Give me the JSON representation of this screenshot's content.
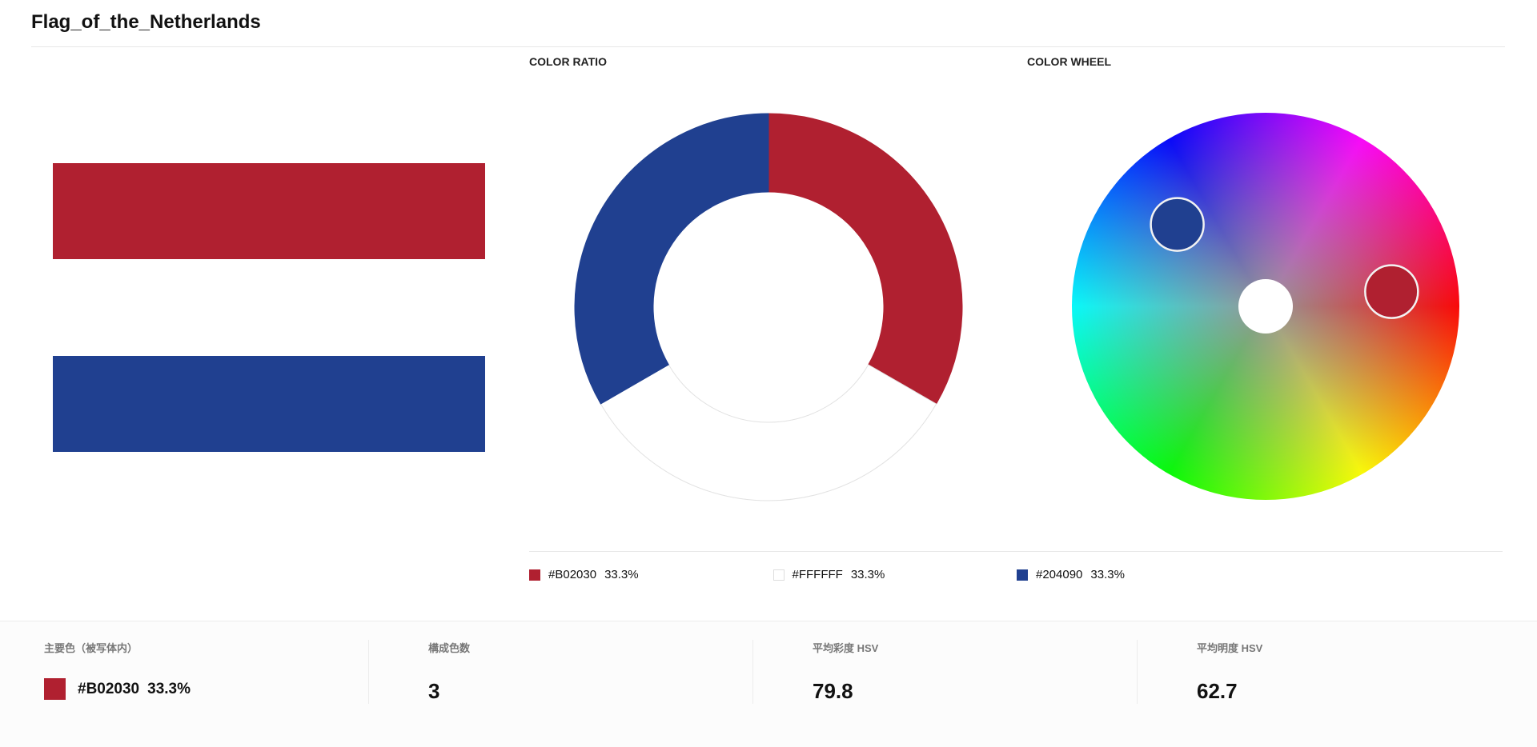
{
  "header": {
    "title": "Flag_of_the_Netherlands"
  },
  "chart_data": [
    {
      "type": "pie",
      "donut": true,
      "title": "COLOR RATIO",
      "categories": [
        "#B02030",
        "#FFFFFF",
        "#204090"
      ],
      "values": [
        33.3,
        33.3,
        33.3
      ],
      "value_labels": [
        "33.3%",
        "33.3%",
        "33.3%"
      ],
      "colors": [
        "#B02030",
        "#FFFFFF",
        "#204090"
      ]
    },
    {
      "type": "color-wheel",
      "title": "COLOR WHEEL"
    }
  ],
  "stats": [
    {
      "label": "主要色（被写体内）",
      "color": "#B02030",
      "value": "#B02030",
      "share": "33.3%"
    },
    {
      "label": "構成色数",
      "value": 3
    },
    {
      "label": "平均彩度 HSV",
      "value": 79.8
    },
    {
      "label": "平均明度 HSV",
      "value": 62.7
    }
  ]
}
